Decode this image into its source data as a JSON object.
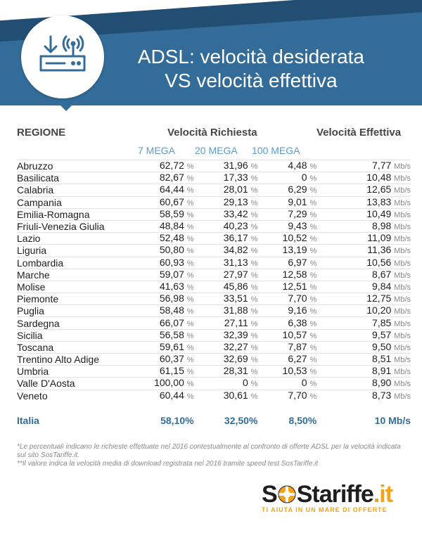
{
  "header": {
    "title_line1": "ADSL: velocità desiderata",
    "title_line2": "VS velocità effettiva"
  },
  "icons": {
    "router": "wifi-router-download-icon",
    "logo_ring": "lifebuoy-icon"
  },
  "colors": {
    "brand_blue": "#336c99",
    "subheader_blue": "#5c9ac9",
    "logo_orange": "#f0a31b"
  },
  "chart_data": {
    "type": "table",
    "columns": {
      "region": "REGIONE",
      "requested": "Velocità Richiesta",
      "effective": "Velocità Effettiva",
      "sub": [
        "7 MEGA",
        "20 MEGA",
        "100 MEGA"
      ]
    },
    "units": {
      "percent": "%",
      "speed": "Mb/s"
    },
    "rows": [
      {
        "region": "Abruzzo",
        "m7": "62,72",
        "m20": "31,96",
        "m100": "4,48",
        "eff": "7,77"
      },
      {
        "region": "Basilicata",
        "m7": "82,67",
        "m20": "17,33",
        "m100": "0",
        "eff": "10,48"
      },
      {
        "region": "Calabria",
        "m7": "64,44",
        "m20": "28,01",
        "m100": "6,29",
        "eff": "12,65"
      },
      {
        "region": "Campania",
        "m7": "60,67",
        "m20": "29,13",
        "m100": "9,01",
        "eff": "13,83"
      },
      {
        "region": "Emilia-Romagna",
        "m7": "58,59",
        "m20": "33,42",
        "m100": "7,29",
        "eff": "10,49"
      },
      {
        "region": "Friuli-Venezia Giulia",
        "m7": "48,84",
        "m20": "40,23",
        "m100": "9,43",
        "eff": "8,98"
      },
      {
        "region": "Lazio",
        "m7": "52,48",
        "m20": "36,17",
        "m100": "10,52",
        "eff": "11,09"
      },
      {
        "region": "Liguria",
        "m7": "50,80",
        "m20": "34,82",
        "m100": "13,19",
        "eff": "11,36"
      },
      {
        "region": "Lombardia",
        "m7": "60,93",
        "m20": "31,13",
        "m100": "6,97",
        "eff": "10,56"
      },
      {
        "region": "Marche",
        "m7": "59,07",
        "m20": "27,97",
        "m100": "12,58",
        "eff": "8,67"
      },
      {
        "region": "Molise",
        "m7": "41,63",
        "m20": "45,86",
        "m100": "12,51",
        "eff": "9,84"
      },
      {
        "region": "Piemonte",
        "m7": "56,98",
        "m20": "33,51",
        "m100": "7,70",
        "eff": "12,75"
      },
      {
        "region": "Puglia",
        "m7": "58,48",
        "m20": "31,88",
        "m100": "9,16",
        "eff": "10,20"
      },
      {
        "region": "Sardegna",
        "m7": "66,07",
        "m20": "27,11",
        "m100": "6,38",
        "eff": "7,85"
      },
      {
        "region": "Sicilia",
        "m7": "56,58",
        "m20": "32,39",
        "m100": "10,57",
        "eff": "9,57"
      },
      {
        "region": "Toscana",
        "m7": "59,61",
        "m20": "32,27",
        "m100": "7,87",
        "eff": "9,50"
      },
      {
        "region": "Trentino Alto Adige",
        "m7": "60,37",
        "m20": "32,69",
        "m100": "6,27",
        "eff": "8,51"
      },
      {
        "region": "Umbria",
        "m7": "61,15",
        "m20": "28,31",
        "m100": "10,53",
        "eff": "8,91"
      },
      {
        "region": "Valle D'Aosta",
        "m7": "100,00",
        "m20": "0",
        "m100": "0",
        "eff": "8,90"
      },
      {
        "region": "Veneto",
        "m7": "60,44",
        "m20": "30,61",
        "m100": "7,70",
        "eff": "8,73"
      }
    ],
    "total": {
      "region": "Italia",
      "m7": "58,10%",
      "m20": "32,50%",
      "m100": "8,50%",
      "eff": "10 Mb/s"
    }
  },
  "notes": {
    "note1": "*Le percentuali indicano le richieste effettuate nel 2016 contestualmente al confronto di offerte ADSL per la velocità indicata sul sito SosTariffe.it.",
    "note2": "**Il valore indica la velocità media di download registrata nel 2016 tramite speed test SosTariffe.it"
  },
  "logo": {
    "s": "S",
    "s2": "S",
    "tariffe": "tariffe",
    "it": ".it",
    "tagline": "TI AIUTA IN UN MARE DI OFFERTE"
  }
}
